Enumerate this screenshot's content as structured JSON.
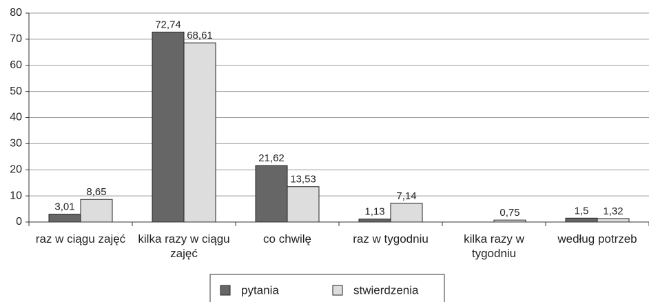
{
  "chart_data": {
    "type": "bar",
    "categories": [
      "raz w ciągu zajęć",
      "kilka razy w ciągu zajęć",
      "co chwilę",
      "raz w tygodniu",
      "kilka razy w tygodniu",
      "według potrzeb"
    ],
    "series": [
      {
        "name": "pytania",
        "color": "#666666",
        "values": [
          3.01,
          72.74,
          21.62,
          1.13,
          null,
          1.5
        ],
        "value_labels": [
          "3,01",
          "72,74",
          "21,62",
          "1,13",
          null,
          "1,5"
        ]
      },
      {
        "name": "stwierdzenia",
        "color": "#dddddd",
        "values": [
          8.65,
          68.61,
          13.53,
          7.14,
          0.75,
          1.32
        ],
        "value_labels": [
          "8,65",
          "68,61",
          "13,53",
          "7,14",
          "0,75",
          "1,32"
        ]
      }
    ],
    "ylim": [
      0,
      80
    ],
    "yticks": [
      0,
      10,
      20,
      30,
      40,
      50,
      60,
      70,
      80
    ],
    "grid": true,
    "legend": "bottom"
  }
}
